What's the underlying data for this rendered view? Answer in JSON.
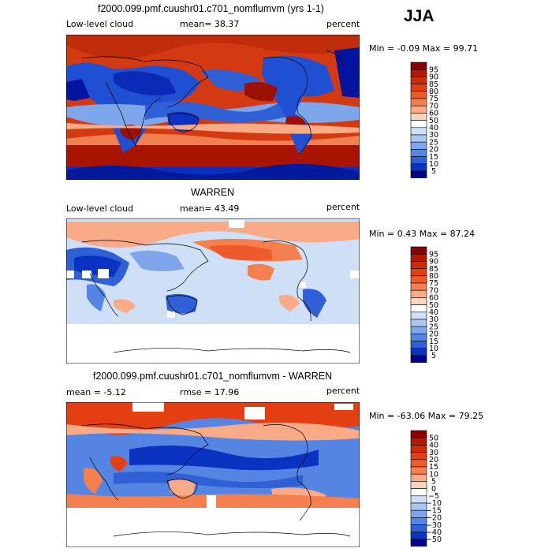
{
  "season": "JJA",
  "panels": [
    {
      "title": "f2000.099.pmf.cuushr01.c701_nomflumvm (yrs 1-1)",
      "left_label": "Low-level cloud",
      "center_label": "mean=  38.37",
      "right_label": "percent",
      "minmax": "Min =  -0.09 Max =  99.71",
      "colorbar_labels": [
        "95",
        "90",
        "85",
        "80",
        "75",
        "70",
        "60",
        "50",
        "40",
        "30",
        "25",
        "20",
        "15",
        "10",
        "5"
      ]
    },
    {
      "title": "WARREN",
      "left_label": "Low-level cloud",
      "center_label": "mean=  43.49",
      "right_label": "percent",
      "minmax": "Min =   0.43 Max =  87.24",
      "colorbar_labels": [
        "95",
        "90",
        "85",
        "80",
        "75",
        "70",
        "60",
        "50",
        "40",
        "30",
        "25",
        "20",
        "15",
        "10",
        "5"
      ]
    },
    {
      "title": "f2000.099.pmf.cuushr01.c701_nomflumvm - WARREN",
      "left_label": "mean =  -5.12",
      "center_label": "rmse =  17.96",
      "right_label": "percent",
      "minmax": "Min = -63.06 Max =  79.25",
      "colorbar_labels": [
        "50",
        "40",
        "30",
        "20",
        "15",
        "10",
        "5",
        "0",
        "−5",
        "−10",
        "−15",
        "−20",
        "−30",
        "−40",
        "−50"
      ]
    }
  ],
  "colors": {
    "scale": [
      "#8b0000",
      "#b01a00",
      "#cf2b07",
      "#e33f12",
      "#ef5a2a",
      "#f5804f",
      "#f9aa86",
      "#fbd3bf",
      "#ffffff",
      "#cfe0f6",
      "#a9c7f0",
      "#7fa6ea",
      "#5585e3",
      "#2f60d6",
      "#0a33c2",
      "#00008b"
    ],
    "coast": "#000000"
  }
}
